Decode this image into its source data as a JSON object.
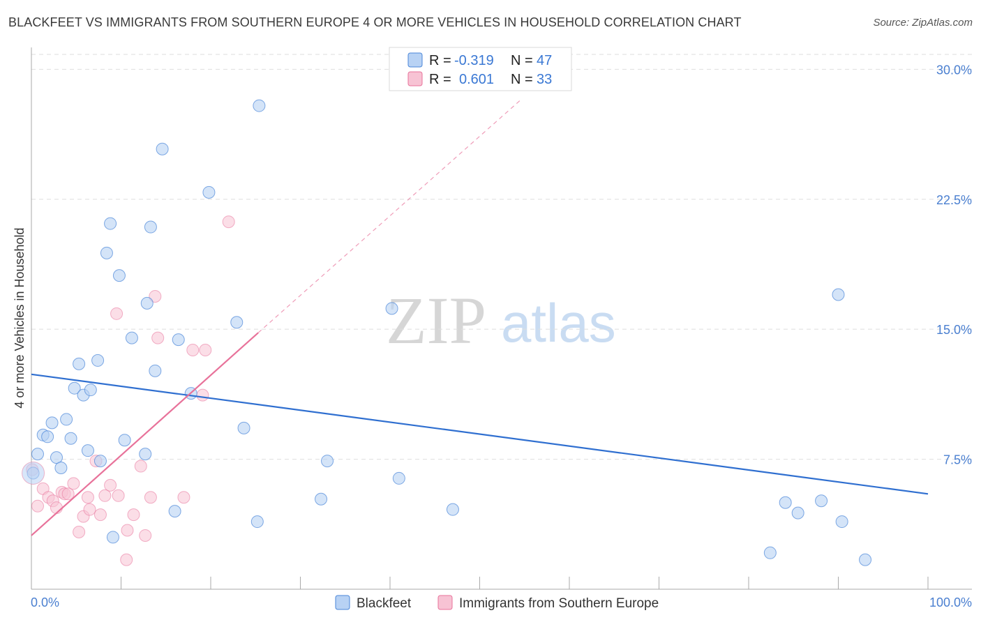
{
  "title": "BLACKFEET VS IMMIGRANTS FROM SOUTHERN EUROPE 4 OR MORE VEHICLES IN HOUSEHOLD CORRELATION CHART",
  "source": "Source: ZipAtlas.com",
  "watermark": {
    "zip": "ZIP",
    "atlas": "atlas"
  },
  "colors": {
    "blue": "#4a86d8",
    "blue_fill": "#b8d2f4",
    "pink": "#e8729a",
    "pink_fill": "#f7c3d4",
    "tick": "#4a7fd0"
  },
  "chart_data": {
    "type": "scatter",
    "ylabel": "4 or more Vehicles in Household",
    "xlim": [
      0,
      100
    ],
    "ylim": [
      0,
      30.9
    ],
    "x_tick_labels": [
      "0.0%",
      "100.0%"
    ],
    "y_ticks": [
      7.5,
      15.0,
      22.5,
      30.0
    ],
    "y_tick_labels": [
      "7.5%",
      "15.0%",
      "22.5%",
      "30.0%"
    ],
    "legend": {
      "rows": [
        {
          "r_label": "R =",
          "r_value": "-0.319",
          "n_label": "N =",
          "n_value": "47"
        },
        {
          "r_label": "R =",
          "r_value": "0.601",
          "n_label": "N =",
          "n_value": "33"
        }
      ]
    },
    "series": [
      {
        "name": "Blackfeet",
        "trend": {
          "x": [
            0,
            100
          ],
          "y": [
            12.4,
            5.5
          ]
        },
        "points": [
          [
            0.2,
            6.7
          ],
          [
            0.7,
            7.8
          ],
          [
            1.3,
            8.9
          ],
          [
            1.8,
            8.8
          ],
          [
            2.3,
            9.6
          ],
          [
            2.8,
            7.6
          ],
          [
            3.3,
            7.0
          ],
          [
            3.9,
            9.8
          ],
          [
            4.4,
            8.7
          ],
          [
            4.8,
            11.6
          ],
          [
            5.3,
            13.0
          ],
          [
            5.8,
            11.2
          ],
          [
            6.3,
            8.0
          ],
          [
            6.6,
            11.5
          ],
          [
            7.4,
            13.2
          ],
          [
            7.7,
            7.4
          ],
          [
            8.4,
            19.4
          ],
          [
            8.8,
            21.1
          ],
          [
            9.1,
            3.0
          ],
          [
            9.8,
            18.1
          ],
          [
            10.4,
            8.6
          ],
          [
            11.2,
            14.5
          ],
          [
            12.7,
            7.8
          ],
          [
            12.9,
            16.5
          ],
          [
            13.3,
            20.9
          ],
          [
            13.8,
            12.6
          ],
          [
            14.6,
            25.4
          ],
          [
            16.0,
            4.5
          ],
          [
            16.4,
            14.4
          ],
          [
            17.8,
            11.3
          ],
          [
            19.8,
            22.9
          ],
          [
            22.9,
            15.4
          ],
          [
            23.7,
            9.3
          ],
          [
            25.2,
            3.9
          ],
          [
            25.4,
            27.9
          ],
          [
            32.3,
            5.2
          ],
          [
            33.0,
            7.4
          ],
          [
            40.2,
            16.2
          ],
          [
            41.0,
            6.4
          ],
          [
            47.0,
            4.6
          ],
          [
            82.4,
            2.1
          ],
          [
            84.1,
            5.0
          ],
          [
            85.5,
            4.4
          ],
          [
            88.1,
            5.1
          ],
          [
            90.0,
            17.0
          ],
          [
            90.4,
            3.9
          ],
          [
            93.0,
            1.7
          ]
        ]
      },
      {
        "name": "Immigrants from Southern Europe",
        "trend": {
          "x": [
            0,
            25.3
          ],
          "y": [
            3.1,
            14.8
          ],
          "dashed_to": {
            "x": 54.5,
            "y": 28.2
          }
        },
        "points": [
          [
            0.1,
            6.9
          ],
          [
            0.7,
            4.8
          ],
          [
            1.3,
            5.8
          ],
          [
            1.9,
            5.3
          ],
          [
            2.4,
            5.1
          ],
          [
            2.8,
            4.7
          ],
          [
            3.4,
            5.6
          ],
          [
            3.7,
            5.5
          ],
          [
            4.1,
            5.5
          ],
          [
            4.7,
            6.1
          ],
          [
            5.3,
            3.3
          ],
          [
            5.8,
            4.2
          ],
          [
            6.3,
            5.3
          ],
          [
            6.5,
            4.6
          ],
          [
            7.2,
            7.4
          ],
          [
            7.7,
            4.3
          ],
          [
            8.2,
            5.4
          ],
          [
            8.8,
            6.0
          ],
          [
            9.5,
            15.9
          ],
          [
            9.7,
            5.4
          ],
          [
            10.6,
            1.7
          ],
          [
            10.7,
            3.4
          ],
          [
            11.4,
            4.3
          ],
          [
            12.2,
            7.1
          ],
          [
            12.7,
            3.1
          ],
          [
            13.3,
            5.3
          ],
          [
            13.8,
            16.9
          ],
          [
            14.1,
            14.5
          ],
          [
            17.0,
            5.3
          ],
          [
            18.0,
            13.8
          ],
          [
            19.1,
            11.2
          ],
          [
            19.4,
            13.8
          ],
          [
            22.0,
            21.2
          ]
        ]
      }
    ]
  }
}
